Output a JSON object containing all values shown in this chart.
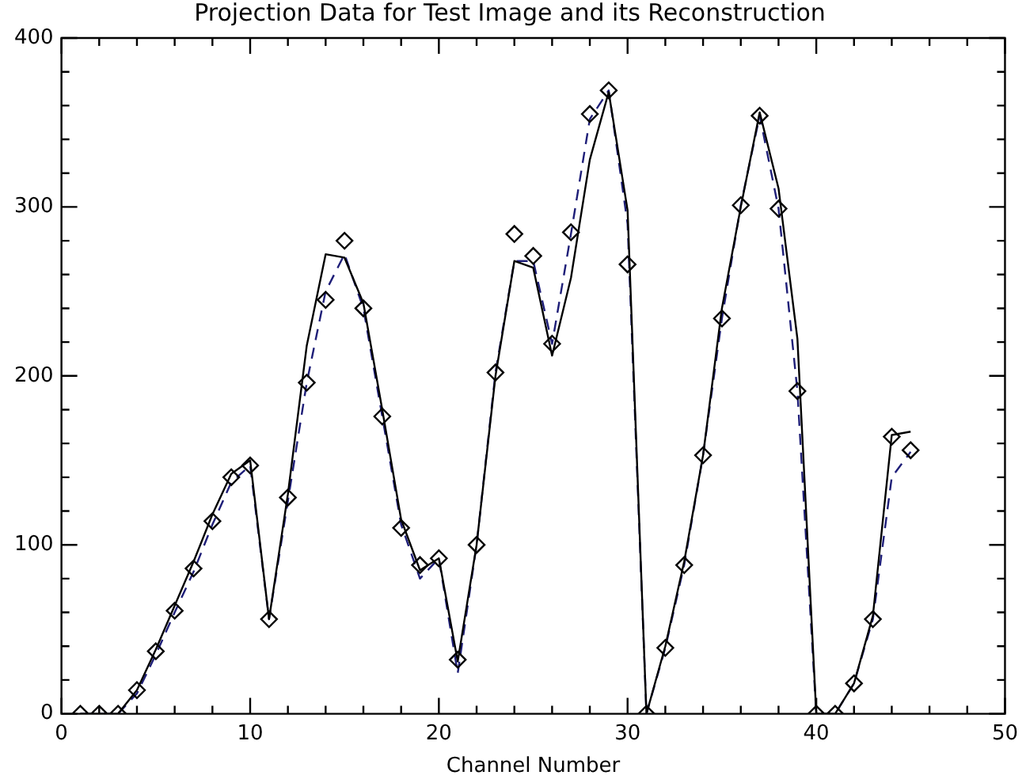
{
  "chart_data": {
    "type": "line",
    "title": "Projection Data for Test Image and its Reconstruction",
    "xlabel": "Channel Number",
    "x": [
      1,
      2,
      3,
      4,
      5,
      6,
      7,
      8,
      9,
      10,
      11,
      12,
      13,
      14,
      15,
      16,
      17,
      18,
      19,
      20,
      21,
      22,
      23,
      24,
      25,
      26,
      27,
      28,
      29,
      30,
      31,
      32,
      33,
      34,
      35,
      36,
      37,
      38,
      39,
      40,
      41,
      42,
      43,
      44,
      45
    ],
    "series": [
      {
        "type": "scatter",
        "marker": "diamond",
        "color": "#000000",
        "values": [
          0,
          0,
          0,
          14,
          37,
          61,
          86,
          114,
          140,
          147,
          56,
          128,
          196,
          245,
          280,
          240,
          176,
          110,
          88,
          92,
          32,
          100,
          202,
          284,
          271,
          219,
          285,
          355,
          369,
          266,
          0,
          39,
          88,
          153,
          234,
          301,
          354,
          299,
          191,
          0,
          0,
          18,
          56,
          164,
          156
        ]
      },
      {
        "type": "line",
        "marker": "none",
        "line_style": "solid",
        "color": "#000000",
        "values": [
          0,
          0,
          0,
          14,
          38,
          64,
          90,
          118,
          142,
          150,
          56,
          130,
          218,
          272,
          270,
          243,
          180,
          115,
          85,
          92,
          31,
          100,
          200,
          268,
          264,
          212,
          258,
          328,
          368,
          298,
          0,
          40,
          90,
          153,
          240,
          300,
          356,
          311,
          222,
          0,
          0,
          18,
          58,
          165,
          167
        ]
      },
      {
        "type": "line",
        "marker": "none",
        "line_style": "dashed",
        "color": "#1e1e78",
        "values": [
          0,
          0,
          0,
          12,
          35,
          60,
          84,
          112,
          137,
          147,
          56,
          126,
          196,
          250,
          272,
          240,
          176,
          112,
          80,
          92,
          24,
          100,
          202,
          268,
          268,
          219,
          284,
          352,
          369,
          290,
          0,
          39,
          88,
          153,
          234,
          301,
          354,
          299,
          191,
          0,
          0,
          18,
          56,
          140,
          155
        ]
      }
    ],
    "xlim": [
      0,
      50
    ],
    "xticks": [
      0,
      {
        "value": 2,
        "label": null
      },
      {
        "value": 4,
        "label": null
      },
      {
        "value": 6,
        "label": null
      },
      {
        "value": 8,
        "label": null
      },
      10,
      {
        "value": 12,
        "label": null
      },
      {
        "value": 14,
        "label": null
      },
      {
        "value": 16,
        "label": null
      },
      {
        "value": 18,
        "label": null
      },
      20,
      {
        "value": 22,
        "label": null
      },
      {
        "value": 24,
        "label": null
      },
      {
        "value": 26,
        "label": null
      },
      {
        "value": 28,
        "label": null
      },
      30,
      {
        "value": 32,
        "label": null
      },
      {
        "value": 34,
        "label": null
      },
      {
        "value": 36,
        "label": null
      },
      {
        "value": 38,
        "label": null
      },
      40,
      {
        "value": 42,
        "label": null
      },
      {
        "value": 44,
        "label": null
      },
      {
        "value": 46,
        "label": null
      },
      {
        "value": 48,
        "label": null
      },
      50
    ],
    "ylim": [
      0,
      400
    ],
    "yticks": [
      0,
      {
        "value": 20,
        "label": null
      },
      {
        "value": 40,
        "label": null
      },
      {
        "value": 60,
        "label": null
      },
      {
        "value": 80,
        "label": null
      },
      100,
      {
        "value": 120,
        "label": null
      },
      {
        "value": 140,
        "label": null
      },
      {
        "value": 160,
        "label": null
      },
      {
        "value": 180,
        "label": null
      },
      200,
      {
        "value": 220,
        "label": null
      },
      {
        "value": 240,
        "label": null
      },
      {
        "value": 260,
        "label": null
      },
      {
        "value": 280,
        "label": null
      },
      300,
      {
        "value": 320,
        "label": null
      },
      {
        "value": 340,
        "label": null
      },
      {
        "value": 360,
        "label": null
      },
      {
        "value": 380,
        "label": null
      },
      400
    ],
    "grid": false,
    "legend": false
  }
}
